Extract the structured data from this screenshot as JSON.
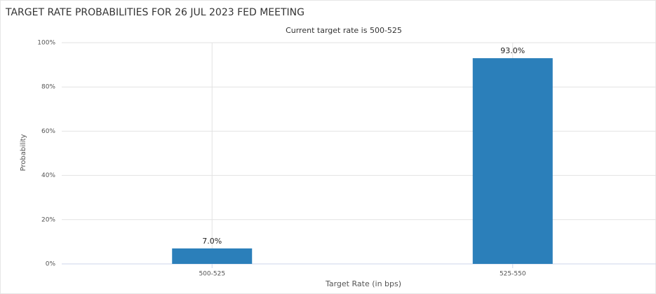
{
  "chart_data": {
    "type": "bar",
    "title": "TARGET RATE PROBABILITIES FOR 26 JUL 2023 FED MEETING",
    "subtitle": "Current target rate is 500-525",
    "x_label": "Target Rate (in bps)",
    "y_label": "Probability",
    "categories": [
      "500-525",
      "525-550"
    ],
    "values": [
      7.0,
      93.0
    ],
    "value_labels": [
      "7.0%",
      "93.0%"
    ],
    "color": "#2b7fba",
    "ylim": [
      0,
      100
    ],
    "yticks": [
      {
        "value": 0,
        "label": "0%"
      },
      {
        "value": 20,
        "label": "20%"
      },
      {
        "value": 40,
        "label": "40%"
      },
      {
        "value": 60,
        "label": "60%"
      },
      {
        "value": 80,
        "label": "80%"
      },
      {
        "value": 100,
        "label": "100%"
      }
    ],
    "grid": true
  }
}
